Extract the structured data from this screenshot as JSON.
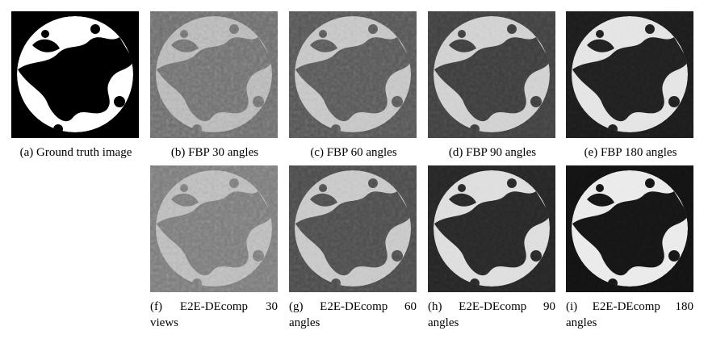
{
  "panels": [
    {
      "caption": "(a) Ground truth image"
    },
    {
      "caption": "(b) FBP 30 angles"
    },
    {
      "caption": "(c) FBP 60 angles"
    },
    {
      "caption": "(d) FBP 90 angles"
    },
    {
      "caption": "(e) FBP 180 angles"
    },
    {
      "caption": "(f) E2E-DEcomp 30 views"
    },
    {
      "caption": "(g) E2E-DEcomp 60 angles"
    },
    {
      "caption": "(h) E2E-DEcomp 90 angles"
    },
    {
      "caption": "(i) E2E-DEcomp 180 angles"
    }
  ]
}
